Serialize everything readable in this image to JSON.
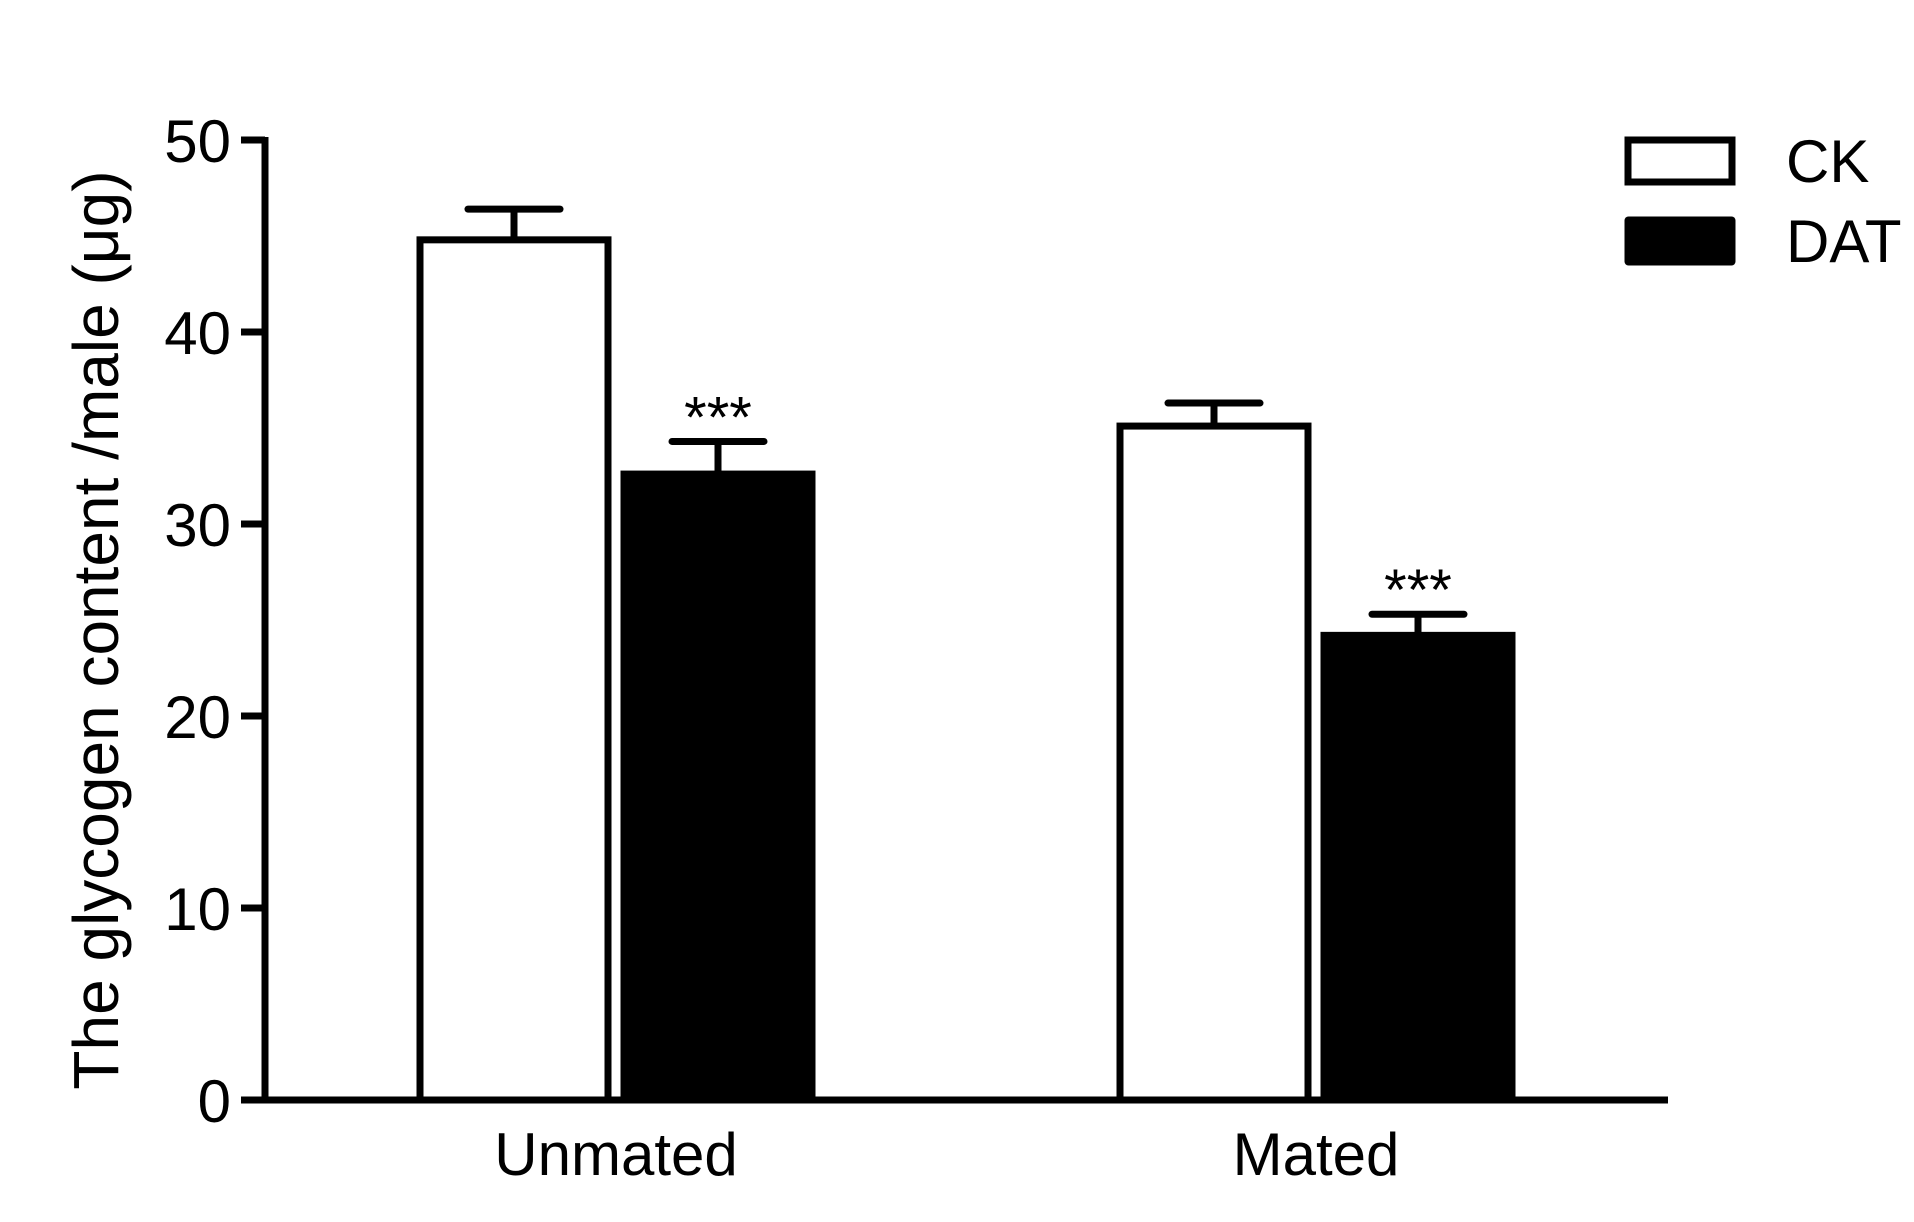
{
  "chart_data": {
    "type": "bar",
    "title": "",
    "xlabel": "",
    "ylabel": "The glycogen content /male (μg)",
    "ylim": [
      0,
      50
    ],
    "yticks": [
      0,
      10,
      20,
      30,
      40,
      50
    ],
    "categories": [
      "Unmated",
      "Mated"
    ],
    "series": [
      {
        "name": "CK",
        "fill": "#ffffff",
        "values": [
          44.8,
          35.1
        ],
        "errors": [
          1.6,
          1.2
        ],
        "annotations": [
          "",
          ""
        ]
      },
      {
        "name": "DAT",
        "fill": "#000000",
        "values": [
          32.6,
          24.2
        ],
        "errors": [
          1.7,
          1.1
        ],
        "annotations": [
          "***",
          "***"
        ]
      }
    ],
    "legend_position": "top-right",
    "grid": false
  }
}
